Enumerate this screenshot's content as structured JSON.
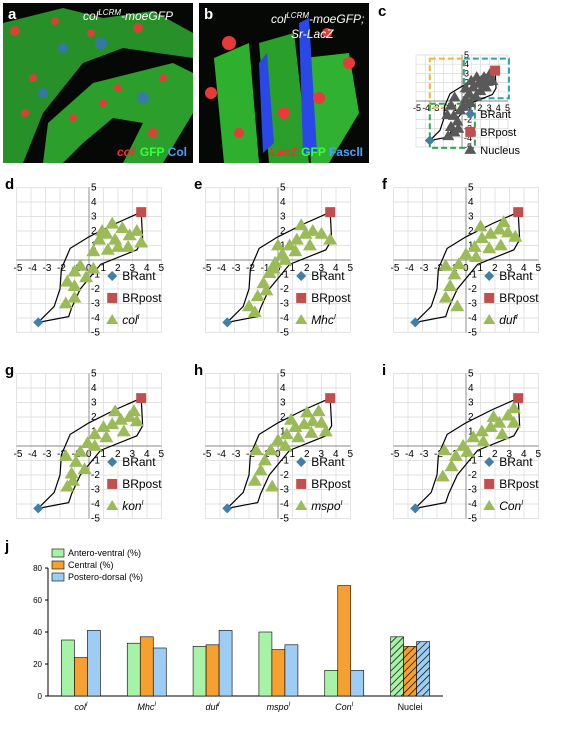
{
  "panels": {
    "a": {
      "label": "a",
      "caption": "col",
      "caption_sup": "LCRM",
      "caption_suffix": "-moeGFP",
      "stains": [
        {
          "text": "col",
          "sup": "I",
          "color": "#ff2a2a",
          "italic": true
        },
        {
          "text": " GFP",
          "color": "#3cff3c"
        },
        {
          "text": " Col",
          "color": "#4aa0ff"
        }
      ]
    },
    "b": {
      "label": "b",
      "caption_line1": "col",
      "caption_sup": "LCRM",
      "caption_suffix": "-moeGFP;",
      "caption_line2": "Sr-LacZ",
      "stains": [
        {
          "text": "LacZ",
          "color": "#ff2a2a"
        },
        {
          "text": " GFP",
          "color": "#3cff3c"
        },
        {
          "text": " FasclI",
          "color": "#4aa0ff"
        }
      ]
    }
  },
  "colors": {
    "brant": "#3f7fa8",
    "brpost": "#c0504d",
    "nucleus": "#595959",
    "green": "#9bbb59",
    "green_box": "#2ea84f",
    "orange_box": "#f2b62c",
    "cyan_box": "#27a8a8",
    "antero": "#a6f2a6",
    "central": "#f5a030",
    "postero": "#9dcdf5"
  },
  "scatter_panels": [
    {
      "id": "c",
      "label": "c",
      "marker": "nucleus",
      "legend": [
        "BRant",
        "BRpost",
        "Nucleus"
      ],
      "legend_italic": [
        false,
        false,
        false
      ]
    },
    {
      "id": "d",
      "label": "d",
      "marker": "green",
      "legend": [
        "BRant",
        "BRpost",
        "col"
      ],
      "legend_sup": "I",
      "legend_italic": [
        false,
        false,
        true
      ]
    },
    {
      "id": "e",
      "label": "e",
      "marker": "green",
      "legend": [
        "BRant",
        "BRpost",
        "Mhc"
      ],
      "legend_sup": "I",
      "legend_italic": [
        false,
        false,
        true
      ]
    },
    {
      "id": "f",
      "label": "f",
      "marker": "green",
      "legend": [
        "BRant",
        "BRpost",
        "duf"
      ],
      "legend_sup": "I",
      "legend_italic": [
        false,
        false,
        true
      ]
    },
    {
      "id": "g",
      "label": "g",
      "marker": "green",
      "legend": [
        "BRant",
        "BRpost",
        "kon"
      ],
      "legend_sup": "I",
      "legend_italic": [
        false,
        false,
        true
      ]
    },
    {
      "id": "h",
      "label": "h",
      "marker": "green",
      "legend": [
        "BRant",
        "BRpost",
        "mspo"
      ],
      "legend_sup": "I",
      "legend_italic": [
        false,
        false,
        true
      ]
    },
    {
      "id": "i",
      "label": "i",
      "marker": "green",
      "legend": [
        "BRant",
        "BRpost",
        "Con"
      ],
      "legend_sup": "I",
      "legend_italic": [
        false,
        false,
        true
      ]
    }
  ],
  "axis_ticks": [
    "-5",
    "-4",
    "-3",
    "-2",
    "-1",
    "0",
    "1",
    "2",
    "3",
    "4",
    "5"
  ],
  "chart_data": {
    "type": "bar",
    "label": "j",
    "categories": [
      "col",
      "Mhc",
      "duf",
      "mspo",
      "Con",
      "Nuclei"
    ],
    "category_sup": [
      "I",
      "I",
      "I",
      "I",
      "I",
      ""
    ],
    "category_italic": [
      true,
      true,
      true,
      true,
      true,
      false
    ],
    "series": [
      {
        "name": "Antero-ventral (%)",
        "values": [
          35,
          33,
          31,
          40,
          16,
          37
        ]
      },
      {
        "name": "Central (%)",
        "values": [
          24,
          37,
          32,
          29,
          69,
          31
        ]
      },
      {
        "name": "Postero-dorsal (%)",
        "values": [
          41,
          30,
          41,
          32,
          16,
          34
        ]
      }
    ],
    "ylim": [
      0,
      80
    ],
    "yticks": [
      "0",
      "20",
      "40",
      "60",
      "80"
    ],
    "legend_position": "top-left"
  }
}
